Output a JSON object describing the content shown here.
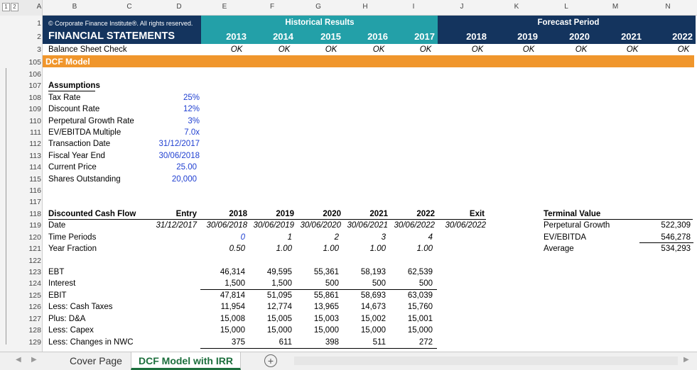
{
  "columns": [
    "A",
    "B",
    "C",
    "D",
    "E",
    "F",
    "G",
    "H",
    "I",
    "J",
    "K",
    "L",
    "M",
    "N"
  ],
  "outline_levels": [
    "1",
    "2"
  ],
  "row_numbers": [
    "1",
    "2",
    "3",
    "105",
    "106",
    "107",
    "108",
    "109",
    "110",
    "111",
    "112",
    "113",
    "114",
    "115",
    "116",
    "117",
    "118",
    "119",
    "120",
    "121",
    "122",
    "123",
    "124",
    "125",
    "126",
    "127",
    "128",
    "129"
  ],
  "banner": {
    "copyright": "© Corporate Finance Institute®. All rights reserved.",
    "title": "FINANCIAL STATEMENTS",
    "historical_label": "Historical Results",
    "forecast_label": "Forecast Period",
    "years": [
      "2013",
      "2014",
      "2015",
      "2016",
      "2017",
      "2018",
      "2019",
      "2020",
      "2021",
      "2022"
    ],
    "check_label": "Balance Sheet Check",
    "checks": [
      "OK",
      "OK",
      "OK",
      "OK",
      "OK",
      "OK",
      "OK",
      "OK",
      "OK",
      "OK"
    ]
  },
  "section_title": "DCF Model",
  "assumptions": {
    "header": "Assumptions",
    "items": [
      {
        "label": "Tax Rate",
        "value": "25%"
      },
      {
        "label": "Discount Rate",
        "value": "12%"
      },
      {
        "label": "Perpetural Growth Rate",
        "value": "3%"
      },
      {
        "label": "EV/EBITDA Multiple",
        "value": "7.0x"
      },
      {
        "label": "Transaction Date",
        "value": "31/12/2017"
      },
      {
        "label": "Fiscal Year End",
        "value": "30/06/2018"
      },
      {
        "label": "Current Price",
        "value": "25.00"
      },
      {
        "label": "Shares Outstanding",
        "value": "20,000"
      }
    ]
  },
  "dcf": {
    "header": "Discounted Cash Flow",
    "entry_label": "Entry",
    "exit_label": "Exit",
    "years": [
      "2018",
      "2019",
      "2020",
      "2021",
      "2022"
    ],
    "date_label": "Date",
    "entry_date": "31/12/2017",
    "dates": [
      "30/06/2018",
      "30/06/2019",
      "30/06/2020",
      "30/06/2021",
      "30/06/2022"
    ],
    "exit_date": "30/06/2022",
    "periods_label": "Time Periods",
    "periods": [
      "0",
      "1",
      "2",
      "3",
      "4"
    ],
    "fraction_label": "Year Fraction",
    "fractions": [
      "0.50",
      "1.00",
      "1.00",
      "1.00",
      "1.00"
    ],
    "rows": [
      {
        "label": "EBT",
        "values": [
          "46,314",
          "49,595",
          "55,361",
          "58,193",
          "62,539"
        ]
      },
      {
        "label": "Interest",
        "values": [
          "1,500",
          "1,500",
          "500",
          "500",
          "500"
        ]
      },
      {
        "label": "EBIT",
        "values": [
          "47,814",
          "51,095",
          "55,861",
          "58,693",
          "63,039"
        ]
      },
      {
        "label": "Less: Cash Taxes",
        "values": [
          "11,954",
          "12,774",
          "13,965",
          "14,673",
          "15,760"
        ]
      },
      {
        "label": "Plus: D&A",
        "values": [
          "15,008",
          "15,005",
          "15,003",
          "15,002",
          "15,001"
        ]
      },
      {
        "label": "Less: Capex",
        "values": [
          "15,000",
          "15,000",
          "15,000",
          "15,000",
          "15,000"
        ]
      },
      {
        "label": "Less: Changes in NWC",
        "values": [
          "375",
          "611",
          "398",
          "511",
          "272"
        ]
      }
    ]
  },
  "terminal": {
    "header": "Terminal Value",
    "items": [
      {
        "label": "Perpetural Growth",
        "value": "522,309"
      },
      {
        "label": "EV/EBITDA",
        "value": "546,278"
      },
      {
        "label": "Average",
        "value": "534,293"
      }
    ]
  },
  "tabs": [
    "Cover Page",
    "DCF Model with IRR"
  ],
  "add_sheet_symbol": "+",
  "colors": {
    "navy": "#14345e",
    "teal": "#23a0a8",
    "orange": "#f0962c",
    "input_blue": "#1f3fd1",
    "tab_green": "#1d6f3d"
  }
}
